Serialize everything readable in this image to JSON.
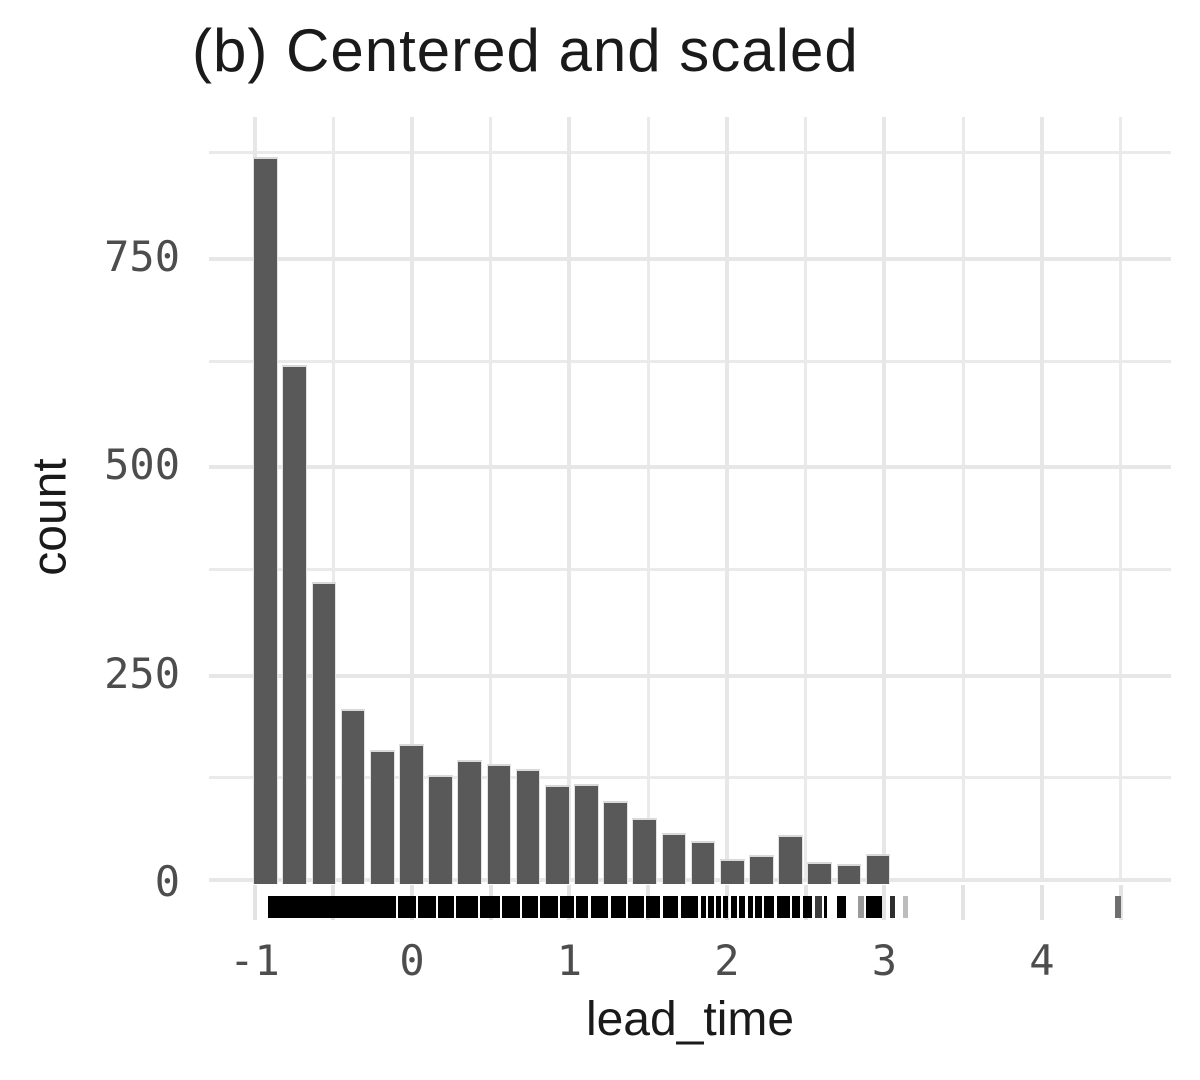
{
  "figure": {
    "title": "(b) Centered and scaled",
    "x_axis_title": "lead_time",
    "y_axis_title": "count"
  },
  "chart_data": {
    "type": "bar",
    "subtype": "histogram_with_rug",
    "title": "(b) Centered and scaled",
    "xlabel": "lead_time",
    "ylabel": "count",
    "x_domain": [
      -1.289,
      4.82
    ],
    "y_domain": [
      0,
      918
    ],
    "grid": "on",
    "legend": "none",
    "x_major_ticks": [
      {
        "value": -1,
        "label": "-1"
      },
      {
        "value": 0,
        "label": "0"
      },
      {
        "value": 1,
        "label": "1"
      },
      {
        "value": 2,
        "label": "2"
      },
      {
        "value": 3,
        "label": "3"
      },
      {
        "value": 4,
        "label": "4"
      }
    ],
    "x_minor_ticks": [
      -0.5,
      0.5,
      1.5,
      2.5,
      3.5,
      4.5
    ],
    "y_major_ticks": [
      {
        "value": 0,
        "label": "0"
      },
      {
        "value": 250,
        "label": "250"
      },
      {
        "value": 500,
        "label": "500"
      },
      {
        "value": 750,
        "label": "750"
      }
    ],
    "y_minor_ticks": [
      125,
      375,
      625,
      875
    ],
    "histogram": {
      "bin_start": -1.008,
      "bin_width": 0.1852,
      "counts": [
        870,
        620,
        360,
        208,
        159,
        166,
        129,
        147,
        142,
        136,
        116,
        118,
        97,
        77,
        59,
        49,
        28,
        33,
        56,
        24,
        22,
        34
      ]
    },
    "rug_segments": [
      [
        -0.914,
        -0.102
      ],
      [
        -0.089,
        0.025
      ],
      [
        0.038,
        0.152
      ],
      [
        0.165,
        0.267
      ],
      [
        0.279,
        0.419
      ],
      [
        0.432,
        0.559
      ],
      [
        0.571,
        0.686
      ],
      [
        0.698,
        0.8
      ],
      [
        0.813,
        0.927
      ],
      [
        0.94,
        1.029
      ],
      [
        1.041,
        1.117
      ],
      [
        1.136,
        1.244
      ],
      [
        1.263,
        1.359
      ],
      [
        1.371,
        1.473
      ],
      [
        1.486,
        1.575
      ],
      [
        1.594,
        1.689
      ],
      [
        1.708,
        1.816
      ],
      [
        1.835,
        1.867
      ],
      [
        1.879,
        1.917
      ],
      [
        1.93,
        1.962
      ],
      [
        1.975,
        2.006
      ],
      [
        2.025,
        2.063
      ],
      [
        2.076,
        2.114
      ],
      [
        2.133,
        2.165
      ],
      [
        2.178,
        2.222
      ],
      [
        2.235,
        2.298
      ],
      [
        2.317,
        2.4
      ],
      [
        2.413,
        2.463
      ],
      [
        2.482,
        2.54
      ],
      [
        2.559,
        2.603,
        "#3d3d3d"
      ],
      [
        2.616,
        2.635
      ],
      [
        2.698,
        2.756
      ],
      [
        2.832,
        2.87,
        "#9a9a9a"
      ],
      [
        2.883,
        2.984
      ],
      [
        3.035,
        3.067,
        "#2e2e2e"
      ],
      [
        3.117,
        3.149,
        "#bdbdbd"
      ],
      [
        4.463,
        4.501,
        "#6e6e6e"
      ]
    ],
    "colors": {
      "bar_fill": "#595959",
      "bar_edge": "#d9d9d9",
      "grid": "#eaeaea",
      "axis_tick": "#e3e3e3",
      "tick_label": "#4d4d4d",
      "text": "#1a1a1a",
      "background": "#ffffff",
      "rug": "#000000"
    }
  }
}
